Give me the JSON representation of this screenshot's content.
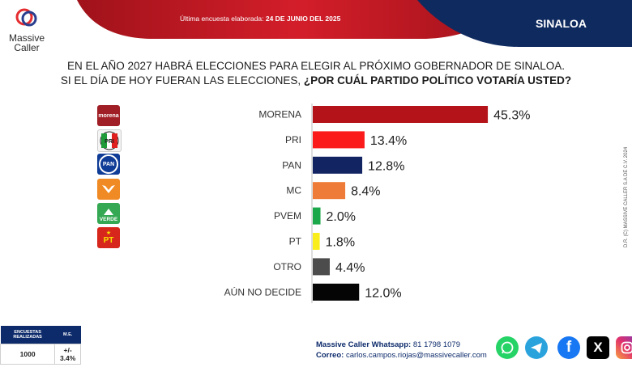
{
  "header": {
    "date_label": "Última encuesta elaborada:",
    "date_value": "24 DE JUNIO DEL 2025",
    "region": "SINALOA",
    "brand_line1": "Massive",
    "brand_line2": "Caller"
  },
  "question": {
    "line1": "EN EL AÑO 2027 HABRÁ ELECCIONES PARA ELEGIR AL PRÓXIMO GOBERNADOR DE SINALOA.",
    "line2_plain": "SI EL DÍA DE HOY FUERAN LAS ELECCIONES, ",
    "line2_bold": "¿POR CUÁL PARTIDO POLÍTICO VOTARÍA USTED?"
  },
  "watermark": "D.R. (C) MASSIVE CALLER S.A DE C.V. 2024",
  "icons": {
    "morena": {
      "label": "morena",
      "color": "#a01f26"
    },
    "pri": {
      "label": "PRI",
      "color": "#e0201f"
    },
    "pan": {
      "label": "PAN",
      "color": "#0f3c96"
    },
    "mc": {
      "label": "",
      "color": "#f08a24"
    },
    "verde": {
      "label": "VERDE",
      "color": "#34a853"
    },
    "pt": {
      "label": "PT",
      "color": "#d7261b"
    }
  },
  "chart_data": {
    "type": "bar",
    "orientation": "horizontal",
    "categories": [
      "MORENA",
      "PRI",
      "PAN",
      "MC",
      "PVEM",
      "PT",
      "OTRO",
      "AÚN NO DECIDE"
    ],
    "values": [
      45.3,
      13.4,
      12.8,
      8.4,
      2.0,
      1.8,
      4.4,
      12.0
    ],
    "value_labels": [
      "45.3%",
      "13.4%",
      "12.8%",
      "8.4%",
      "2.0%",
      "1.8%",
      "4.4%",
      "12.0%"
    ],
    "colors": [
      "#b41419",
      "#fb1b1b",
      "#122461",
      "#ee7b37",
      "#1aa84b",
      "#f9ee1c",
      "#4c4c4c",
      "#050505"
    ],
    "grid": false,
    "legend": "none"
  },
  "survey": {
    "col1": "ENCUESTAS REALIZADAS",
    "col2": "M.E.",
    "count": "1000",
    "margin": "+/- 3.4%"
  },
  "contact": {
    "whatsapp_label": "Massive Caller Whatsapp:",
    "whatsapp_number": "81 1798 1079",
    "email_label": "Correo:",
    "email": "carlos.campos.riojas@massivecaller.com"
  },
  "social": {
    "whatsapp": "whatsapp",
    "telegram": "telegram",
    "facebook": "f",
    "x": "X",
    "instagram": "instagram"
  }
}
